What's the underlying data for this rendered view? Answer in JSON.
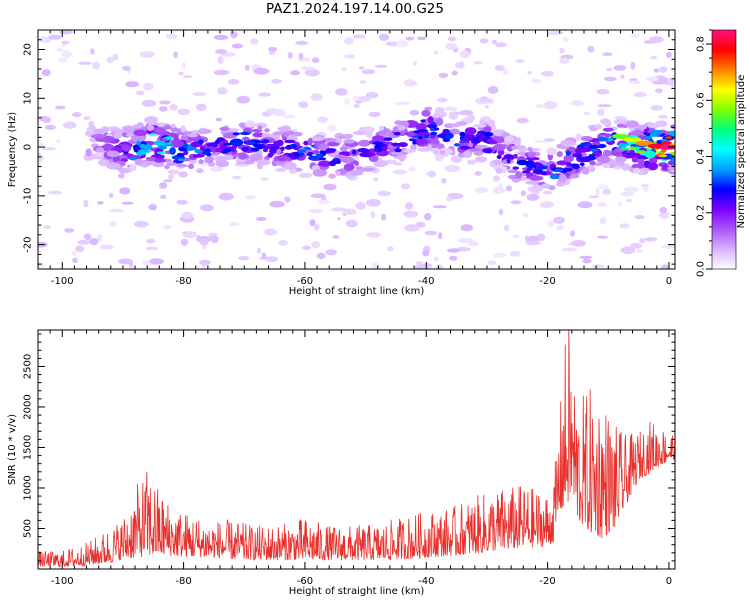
{
  "figure": {
    "title": "PAZ1.2024.197.14.00.G25"
  },
  "chart_data": [
    {
      "type": "heatmap",
      "title": "",
      "xlabel": "Height of straight line (km)",
      "ylabel": "Frequency (Hz)",
      "xlim": [
        -104,
        1
      ],
      "ylim": [
        -25,
        24
      ],
      "xticks": [
        -100,
        -80,
        -60,
        -40,
        -20,
        0
      ],
      "yticks": [
        -20,
        -10,
        0,
        10,
        20
      ],
      "colorbar": {
        "label": "Normalized spectral amplitude",
        "range": [
          0.0,
          0.85
        ],
        "ticks": [
          0.0,
          0.2,
          0.4,
          0.6,
          0.8
        ],
        "colormap": [
          "#ffffff",
          "#d9b3ff",
          "#a855f7",
          "#7c00ff",
          "#0000ff",
          "#00a0ff",
          "#00ffff",
          "#00ff80",
          "#80ff00",
          "#ffff00",
          "#ff8000",
          "#ff0000",
          "#ff1080"
        ]
      },
      "ridge": {
        "description_free": true,
        "x": [
          -95,
          -90,
          -85,
          -80,
          -75,
          -70,
          -65,
          -60,
          -55,
          -50,
          -45,
          -40,
          -35,
          -30,
          -25,
          -20,
          -15,
          -10,
          -5,
          0
        ],
        "freq": [
          1,
          -1,
          1,
          -1,
          0,
          1,
          0,
          -1,
          -2,
          -1,
          1,
          4,
          2,
          1,
          -3,
          -5,
          -2,
          1,
          0,
          0
        ],
        "amplitude": [
          0.15,
          0.3,
          0.45,
          0.42,
          0.3,
          0.32,
          0.28,
          0.35,
          0.3,
          0.28,
          0.3,
          0.33,
          0.32,
          0.3,
          0.3,
          0.35,
          0.3,
          0.4,
          0.62,
          0.85
        ]
      }
    },
    {
      "type": "line",
      "title": "",
      "xlabel": "Height of straight line (km)",
      "ylabel": "SNR (10 * v/v)",
      "xlim": [
        -104,
        1
      ],
      "ylim": [
        0,
        2950
      ],
      "xticks": [
        -100,
        -80,
        -60,
        -40,
        -20,
        0
      ],
      "yticks": [
        500,
        1000,
        1500,
        2000,
        2500
      ],
      "color": "#e8302c",
      "envelope": {
        "x": [
          -104,
          -100,
          -96,
          -92,
          -90,
          -88,
          -86,
          -84,
          -82,
          -80,
          -76,
          -72,
          -68,
          -64,
          -60,
          -56,
          -52,
          -48,
          -44,
          -40,
          -36,
          -32,
          -28,
          -24,
          -20,
          -19,
          -18,
          -17,
          -16,
          -15,
          -13,
          -11,
          -9,
          -7,
          -5,
          -3,
          -1,
          1
        ],
        "low": [
          30,
          30,
          40,
          80,
          120,
          140,
          160,
          170,
          160,
          150,
          140,
          120,
          110,
          110,
          110,
          110,
          110,
          110,
          120,
          140,
          160,
          190,
          230,
          260,
          280,
          330,
          700,
          750,
          900,
          600,
          450,
          380,
          500,
          800,
          1100,
          1200,
          1300,
          1350
        ],
        "high": [
          220,
          230,
          330,
          520,
          650,
          1000,
          1250,
          1000,
          800,
          720,
          620,
          600,
          540,
          560,
          640,
          540,
          540,
          560,
          650,
          720,
          760,
          900,
          1000,
          1050,
          950,
          1100,
          1950,
          2950,
          2650,
          2100,
          2250,
          2200,
          1800,
          1650,
          1700,
          1850,
          1750,
          1700
        ],
        "peak_annotations": {
          "x": -16.5,
          "value": 2950
        }
      }
    }
  ]
}
